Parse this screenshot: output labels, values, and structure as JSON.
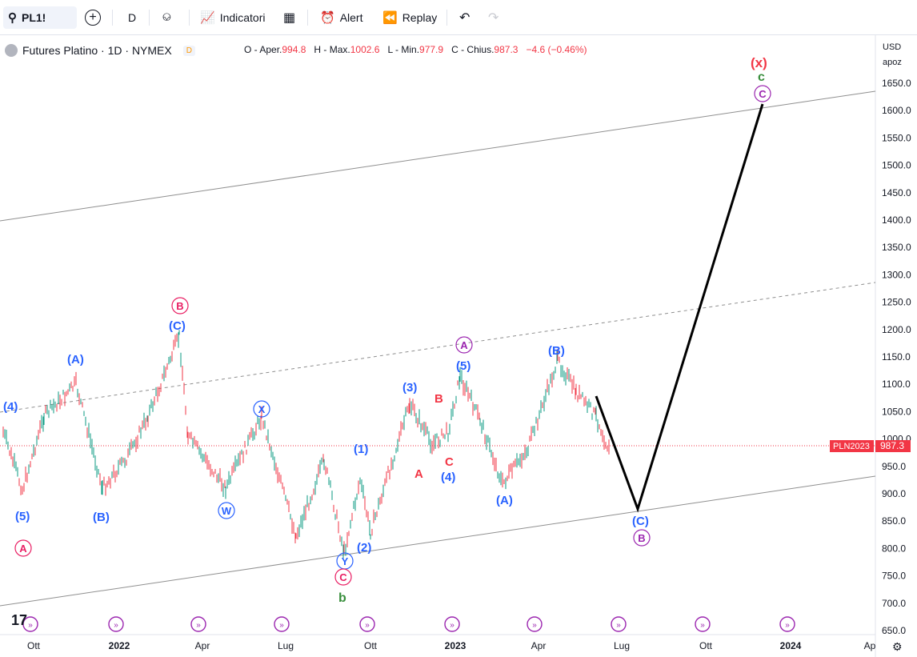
{
  "toolbar": {
    "symbol": "PL1!",
    "interval": "D",
    "indicators_label": "Indicatori",
    "alert_label": "Alert",
    "replay_label": "Replay"
  },
  "legend": {
    "title": "Futures Platino · 1D · NYMEX",
    "badge": "D",
    "open_label": "O - Aper.",
    "open": "994.8",
    "high_label": "H - Max.",
    "high": "1002.6",
    "low_label": "L - Min.",
    "low": "977.9",
    "close_label": "C - Chius.",
    "close": "987.3",
    "change": "−4.6 (−0.46%)"
  },
  "price_axis": {
    "currency": "USD",
    "mode": "apoz",
    "ticks": [
      "1650.0",
      "1600.0",
      "1550.0",
      "1500.0",
      "1450.0",
      "1400.0",
      "1350.0",
      "1300.0",
      "1250.0",
      "1200.0",
      "1150.0",
      "1100.0",
      "1050.0",
      "1000.0",
      "950.0",
      "900.0",
      "850.0",
      "800.0",
      "750.0",
      "700.0",
      "650.0"
    ],
    "last_price_symbol": "PLN2023",
    "last_price": "987.3"
  },
  "time_axis": {
    "labels": [
      "Ott",
      "2022",
      "Apr",
      "Lug",
      "Ott",
      "2023",
      "Apr",
      "Lug",
      "Ott",
      "2024",
      "Ap"
    ]
  },
  "wave_labels": {
    "w4": "(4)",
    "w5": "(5)",
    "wA_circ": "A",
    "wA_par": "(A)",
    "wB_par": "(B)",
    "wB_circ": "B",
    "wC_par": "(C)",
    "wW": "W",
    "wX": "X",
    "wY": "Y",
    "wC_circ": "C",
    "wb": "b",
    "w1": "(1)",
    "w2": "(2)",
    "w3": "(3)",
    "wA_red": "A",
    "wB_red": "B",
    "wC_red": "C",
    "w4b": "(4)",
    "w5b": "(5)",
    "wA_circ2": "A",
    "wA_par2": "(A)",
    "wB_par2": "(B)",
    "wC_par2": "(C)",
    "wB_circ2": "B",
    "wx": "(x)",
    "wc": "c",
    "wC_circ2": "C"
  },
  "colors": {
    "up": "#089981",
    "down": "#f23645",
    "blue": "#2962ff",
    "red": "#f23645",
    "purple": "#9c27b0",
    "green": "#388e3c",
    "pink": "#e91e63"
  }
}
